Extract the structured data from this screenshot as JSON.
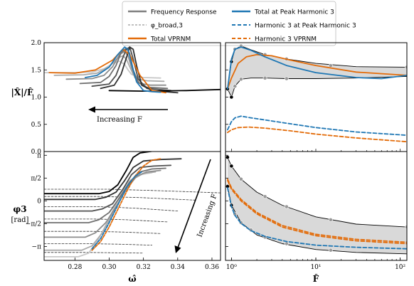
{
  "legend": {
    "items": [
      {
        "label": "Frequency Response",
        "style": "solid",
        "color": "#7f7f7f"
      },
      {
        "label": "φ_broad,3",
        "style": "dashed",
        "color": "#7f7f7f"
      },
      {
        "label": "Total VPRNM",
        "style": "solid",
        "color": "#e36c0a"
      },
      {
        "label": "Total at Peak Harmonic 3",
        "style": "solid",
        "color": "#1f77b4"
      },
      {
        "label": "Harmonic 3 at Peak Harmonic 3",
        "style": "dashed",
        "color": "#1f77b4"
      },
      {
        "label": "Harmonic 3 VPRNM",
        "style": "dashed",
        "color": "#e36c0a"
      }
    ]
  },
  "colors": {
    "orange": "#e36c0a",
    "blue": "#1f77b4",
    "band": "#d9d9d9"
  },
  "annotations": {
    "top_left": "Increasing F",
    "bottom_left": "Increasing F"
  },
  "labels": {
    "ylabel_top": "|X̂|/F̂",
    "ylabel_bottom_line1": "φ3",
    "ylabel_bottom_line2": "[rad]",
    "xlabel_left": "ω̂",
    "xlabel_right": "F̂"
  },
  "chart_data": [
    {
      "id": "top-left",
      "type": "line",
      "xlim": [
        0.262,
        0.365
      ],
      "ylim": [
        0.0,
        2.0
      ],
      "yticks": [
        0.0,
        0.5,
        1.0,
        1.5,
        2.0
      ],
      "ytick_labels": [
        "0.0",
        "0.5",
        "1.0",
        "1.5",
        "2.0"
      ],
      "grays": [
        "#c8c8c8",
        "#aaaaaa",
        "#8c8c8c",
        "#707070",
        "#505050",
        "#303030",
        "#000000"
      ],
      "frequency_response": [
        {
          "x": [
            0.262,
            0.28,
            0.29,
            0.297,
            0.302,
            0.306,
            0.309,
            0.311,
            0.313,
            0.316,
            0.32,
            0.33
          ],
          "y": [
            1.45,
            1.45,
            1.46,
            1.52,
            1.62,
            1.66,
            1.6,
            1.5,
            1.42,
            1.38,
            1.36,
            1.35
          ]
        },
        {
          "x": [
            0.268,
            0.285,
            0.293,
            0.3,
            0.305,
            0.308,
            0.31,
            0.312,
            0.314,
            0.317,
            0.322,
            0.332
          ],
          "y": [
            1.4,
            1.41,
            1.44,
            1.56,
            1.72,
            1.76,
            1.7,
            1.56,
            1.42,
            1.33,
            1.3,
            1.29
          ]
        },
        {
          "x": [
            0.275,
            0.29,
            0.297,
            0.302,
            0.306,
            0.309,
            0.311,
            0.313,
            0.315,
            0.318,
            0.324,
            0.333
          ],
          "y": [
            1.33,
            1.34,
            1.4,
            1.56,
            1.78,
            1.84,
            1.76,
            1.55,
            1.36,
            1.25,
            1.22,
            1.22
          ]
        },
        {
          "x": [
            0.283,
            0.295,
            0.3,
            0.304,
            0.307,
            0.31,
            0.312,
            0.314,
            0.317,
            0.322,
            0.334
          ],
          "y": [
            1.25,
            1.27,
            1.38,
            1.58,
            1.82,
            1.9,
            1.8,
            1.5,
            1.27,
            1.18,
            1.16
          ]
        },
        {
          "x": [
            0.29,
            0.3,
            0.304,
            0.307,
            0.31,
            0.312,
            0.314,
            0.317,
            0.322,
            0.336
          ],
          "y": [
            1.2,
            1.24,
            1.4,
            1.65,
            1.88,
            1.92,
            1.7,
            1.33,
            1.16,
            1.12
          ]
        },
        {
          "x": [
            0.295,
            0.303,
            0.307,
            0.31,
            0.312,
            0.314,
            0.316,
            0.319,
            0.325,
            0.34
          ],
          "y": [
            1.16,
            1.22,
            1.42,
            1.72,
            1.92,
            1.88,
            1.58,
            1.22,
            1.12,
            1.08
          ]
        },
        {
          "x": [
            0.3,
            0.32,
            0.345,
            0.365
          ],
          "y": [
            1.12,
            1.11,
            1.12,
            1.14
          ]
        }
      ],
      "total_vprnm": {
        "x": [
          0.265,
          0.28,
          0.292,
          0.302,
          0.308,
          0.312,
          0.318,
          0.325,
          0.333
        ],
        "y": [
          1.45,
          1.44,
          1.5,
          1.68,
          1.88,
          1.78,
          1.4,
          1.12,
          1.08
        ]
      },
      "total_peak_h3": {
        "x": [
          0.286,
          0.293,
          0.3,
          0.305,
          0.309,
          0.311,
          0.313,
          0.316,
          0.32,
          0.325,
          0.33
        ],
        "y": [
          1.36,
          1.4,
          1.55,
          1.78,
          1.92,
          1.88,
          1.62,
          1.28,
          1.12,
          1.1,
          1.09
        ]
      }
    },
    {
      "id": "bottom-left",
      "type": "line",
      "xlim": [
        0.262,
        0.365
      ],
      "ylim": [
        -4.1,
        3.4
      ],
      "xticks": [
        0.28,
        0.3,
        0.32,
        0.34,
        0.36
      ],
      "xtick_labels": [
        "0.28",
        "0.30",
        "0.32",
        "0.34",
        "0.36"
      ],
      "yticks": [
        3.1416,
        1.5708,
        0.0,
        -1.5708,
        -3.1416
      ],
      "ytick_labels": [
        "π",
        "π/2",
        "0",
        "−π/2",
        "−π"
      ],
      "phase_curves": [
        {
          "x": [
            0.262,
            0.282,
            0.288,
            0.294,
            0.3,
            0.306,
            0.312,
            0.318,
            0.325
          ],
          "y": [
            -3.85,
            -3.85,
            -3.6,
            -2.6,
            -1.2,
            0.3,
            1.4,
            1.8,
            1.95
          ]
        },
        {
          "x": [
            0.262,
            0.284,
            0.29,
            0.296,
            0.302,
            0.308,
            0.314,
            0.32,
            0.327
          ],
          "y": [
            -3.4,
            -3.4,
            -3.1,
            -2.2,
            -0.9,
            0.4,
            1.5,
            1.9,
            2.0
          ]
        },
        {
          "x": [
            0.262,
            0.286,
            0.292,
            0.298,
            0.304,
            0.31,
            0.316,
            0.322,
            0.33
          ],
          "y": [
            -2.5,
            -2.5,
            -2.2,
            -1.5,
            -0.4,
            0.8,
            1.7,
            2.0,
            2.1
          ]
        },
        {
          "x": [
            0.262,
            0.288,
            0.294,
            0.3,
            0.306,
            0.312,
            0.318,
            0.325,
            0.333
          ],
          "y": [
            -1.5,
            -1.5,
            -1.3,
            -0.8,
            0.2,
            1.3,
            2.0,
            2.2,
            2.25
          ]
        },
        {
          "x": [
            0.262,
            0.29,
            0.296,
            0.302,
            0.308,
            0.313,
            0.318,
            0.326,
            0.336
          ],
          "y": [
            -0.7,
            -0.7,
            -0.55,
            -0.2,
            0.8,
            1.8,
            2.3,
            2.4,
            2.45
          ]
        },
        {
          "x": [
            0.262,
            0.292,
            0.298,
            0.304,
            0.309,
            0.314,
            0.32,
            0.33,
            0.342
          ],
          "y": [
            0.1,
            0.1,
            0.25,
            0.6,
            1.4,
            2.3,
            2.75,
            2.85,
            2.9
          ]
        },
        {
          "x": [
            0.262,
            0.294,
            0.3,
            0.305,
            0.31,
            0.314,
            0.318,
            0.325,
            0.34,
            0.36
          ],
          "y": [
            0.5,
            0.5,
            0.65,
            1.1,
            2.1,
            3.0,
            3.3,
            3.42,
            3.45,
            3.45
          ]
        }
      ],
      "broad_phase": [
        {
          "x": [
            0.262,
            0.285,
            0.3,
            0.32
          ],
          "y": [
            -3.55,
            -3.55,
            -3.57,
            -3.6
          ]
        },
        {
          "x": [
            0.262,
            0.288,
            0.305,
            0.325
          ],
          "y": [
            -2.95,
            -2.95,
            -2.98,
            -3.05
          ]
        },
        {
          "x": [
            0.262,
            0.29,
            0.308,
            0.33
          ],
          "y": [
            -2.1,
            -2.1,
            -2.15,
            -2.25
          ]
        },
        {
          "x": [
            0.262,
            0.292,
            0.31,
            0.334
          ],
          "y": [
            -1.25,
            -1.25,
            -1.3,
            -1.45
          ]
        },
        {
          "x": [
            0.262,
            0.294,
            0.315,
            0.34
          ],
          "y": [
            -0.4,
            -0.4,
            -0.5,
            -0.7
          ]
        },
        {
          "x": [
            0.262,
            0.296,
            0.32,
            0.35
          ],
          "y": [
            0.3,
            0.3,
            0.22,
            0.05
          ]
        },
        {
          "x": [
            0.262,
            0.3,
            0.33,
            0.365
          ],
          "y": [
            0.8,
            0.8,
            0.7,
            0.55
          ]
        }
      ],
      "total_vprnm": {
        "x": [
          0.29,
          0.295,
          0.3,
          0.305,
          0.31,
          0.315,
          0.32,
          0.325,
          0.33
        ],
        "y": [
          -3.4,
          -2.8,
          -1.8,
          -0.6,
          0.6,
          1.7,
          2.4,
          2.8,
          2.9
        ]
      },
      "total_peak_h3": {
        "x": [
          0.29,
          0.295,
          0.3,
          0.305,
          0.31,
          0.315,
          0.319
        ],
        "y": [
          -3.3,
          -2.6,
          -1.5,
          -0.3,
          0.9,
          1.7,
          2.0
        ]
      }
    },
    {
      "id": "top-right",
      "type": "line",
      "xscale": "log",
      "xlim": [
        0.85,
        120
      ],
      "ylim": [
        0.0,
        2.0
      ],
      "band_upper": {
        "x": [
          0.9,
          1.0,
          1.1,
          1.3,
          1.7,
          2.5,
          4.5,
          10,
          30,
          120
        ],
        "y": [
          1.15,
          1.65,
          1.88,
          1.94,
          1.87,
          1.78,
          1.7,
          1.62,
          1.56,
          1.55
        ]
      },
      "band_lower": {
        "x": [
          0.9,
          1.0,
          1.1,
          1.3,
          1.7,
          2.5,
          4.5,
          10,
          30,
          120
        ],
        "y": [
          1.15,
          1.0,
          1.2,
          1.33,
          1.35,
          1.35,
          1.34,
          1.34,
          1.35,
          1.38
        ]
      },
      "upper_markers": {
        "x": [
          0.9,
          1.0,
          1.1,
          1.3,
          2.5,
          4.5,
          15,
          120
        ],
        "y": [
          1.15,
          1.65,
          1.88,
          1.94,
          1.78,
          1.7,
          1.58,
          1.55
        ]
      },
      "lower_markers": {
        "x": [
          1.0,
          1.1,
          1.3,
          2.5,
          4.5
        ],
        "y": [
          1.0,
          1.2,
          1.33,
          1.35,
          1.34
        ]
      },
      "total_vprnm": {
        "x": [
          0.9,
          1.0,
          1.2,
          1.5,
          2.0,
          3.0,
          5.0,
          10,
          30,
          120
        ],
        "y": [
          1.15,
          1.35,
          1.62,
          1.74,
          1.78,
          1.76,
          1.68,
          1.58,
          1.46,
          1.4
        ]
      },
      "total_peak_h3": {
        "x": [
          0.9,
          1.0,
          1.1,
          1.3,
          1.7,
          2.5,
          4.5,
          10,
          30,
          60,
          120
        ],
        "y": [
          1.15,
          1.7,
          1.88,
          1.92,
          1.86,
          1.74,
          1.58,
          1.45,
          1.36,
          1.34,
          1.4
        ]
      },
      "h3_peak_h3": {
        "x": [
          0.9,
          1.0,
          1.1,
          1.3,
          1.7,
          2.5,
          4.5,
          10,
          30,
          120
        ],
        "y": [
          0.4,
          0.55,
          0.62,
          0.65,
          0.62,
          0.58,
          0.52,
          0.44,
          0.36,
          0.3
        ]
      },
      "h3_vprnm": {
        "x": [
          0.9,
          1.0,
          1.2,
          1.6,
          2.5,
          5.0,
          10,
          30,
          120
        ],
        "y": [
          0.35,
          0.4,
          0.44,
          0.45,
          0.43,
          0.38,
          0.32,
          0.25,
          0.18
        ]
      }
    },
    {
      "id": "bottom-right",
      "type": "line",
      "xscale": "log",
      "xlim": [
        0.85,
        120
      ],
      "ylim": [
        -4.1,
        3.4
      ],
      "xticks": [
        1,
        10,
        100
      ],
      "xtick_labels": [
        "10⁰",
        "10¹",
        "10²"
      ],
      "band_upper": {
        "x": [
          0.9,
          1.0,
          1.3,
          2.0,
          4.0,
          10,
          30,
          120
        ],
        "y": [
          3.0,
          2.4,
          1.5,
          0.6,
          -0.3,
          -1.1,
          -1.6,
          -1.8
        ]
      },
      "band_lower": {
        "x": [
          0.9,
          1.0,
          1.3,
          2.0,
          4.0,
          10,
          30,
          120
        ],
        "y": [
          1.0,
          -0.3,
          -1.5,
          -2.35,
          -2.95,
          -3.35,
          -3.55,
          -3.65
        ]
      },
      "upper_markers": {
        "x": [
          0.9,
          1.0,
          1.3,
          2.5,
          4.5,
          15,
          120
        ],
        "y": [
          3.0,
          2.4,
          1.5,
          0.3,
          -0.4,
          -1.3,
          -1.8
        ]
      },
      "lower_markers": {
        "x": [
          0.9,
          1.0,
          1.1,
          1.3,
          1.7,
          2.5,
          4.5,
          15
        ],
        "y": [
          1.0,
          -0.3,
          -0.9,
          -1.5,
          -2.0,
          -2.5,
          -2.95,
          -3.4
        ]
      },
      "total_vprnm": {
        "x": [
          0.9,
          1.0,
          1.3,
          2.0,
          4.0,
          10,
          30,
          120
        ],
        "y": [
          1.5,
          0.9,
          0.1,
          -0.8,
          -1.7,
          -2.3,
          -2.65,
          -2.85
        ]
      },
      "h3_vprnm": {
        "x": [
          0.9,
          1.0,
          1.3,
          2.0,
          4.0,
          10,
          30,
          120
        ],
        "y": [
          1.4,
          0.8,
          0.0,
          -0.9,
          -1.8,
          -2.4,
          -2.75,
          -2.95
        ]
      },
      "h3_peak_h3": {
        "x": [
          0.9,
          1.0,
          1.1,
          1.3,
          1.7,
          2.5,
          4.5,
          10,
          30,
          120
        ],
        "y": [
          0.9,
          -0.4,
          -1.0,
          -1.55,
          -2.05,
          -2.45,
          -2.8,
          -3.05,
          -3.2,
          -3.3
        ]
      }
    }
  ]
}
